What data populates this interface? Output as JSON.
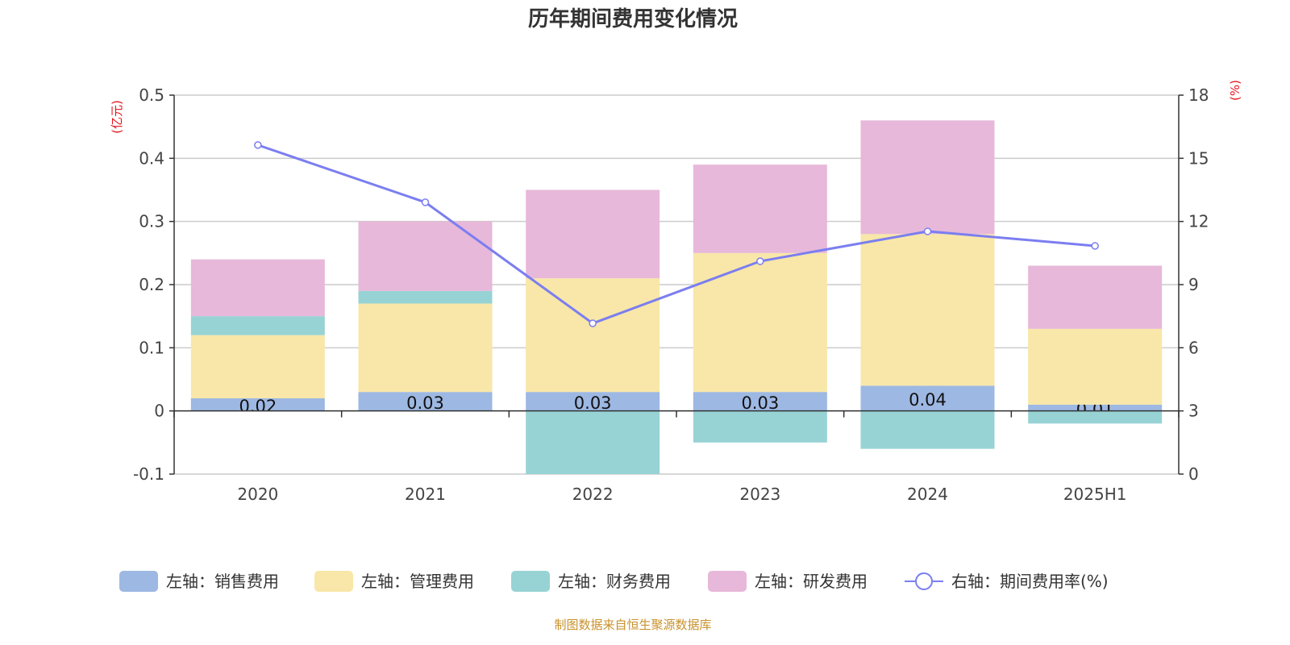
{
  "chart_data": {
    "type": "bar",
    "title": "历年期间费用变化情况",
    "categories": [
      "2020",
      "2021",
      "2022",
      "2023",
      "2024",
      "2025H1"
    ],
    "left_axis": {
      "unit": "(亿元)",
      "range": [
        -0.1,
        0.5
      ],
      "ticks": [
        "-0.1",
        "0",
        "0.1",
        "0.2",
        "0.3",
        "0.4",
        "0.5"
      ]
    },
    "right_axis": {
      "unit": "(%)",
      "range": [
        0,
        18
      ],
      "ticks": [
        "0",
        "3",
        "6",
        "9",
        "12",
        "15",
        "18"
      ]
    },
    "grid": true,
    "legend_position": "bottom",
    "series": [
      {
        "name": "左轴：销售费用",
        "kind": "bar",
        "color": "#9db8e2",
        "values": [
          0.02,
          0.03,
          0.03,
          0.03,
          0.04,
          0.01
        ],
        "labels": [
          "0.02",
          "0.03",
          "0.03",
          "0.03",
          "0.04",
          "0.01"
        ]
      },
      {
        "name": "左轴：管理费用",
        "kind": "bar",
        "color": "#f8e7a8",
        "values": [
          0.1,
          0.14,
          0.18,
          0.22,
          0.24,
          0.12
        ]
      },
      {
        "name": "左轴：财务费用",
        "kind": "bar",
        "color": "#97d3d4",
        "values": [
          0.03,
          0.02,
          -0.1,
          -0.05,
          -0.06,
          -0.02
        ]
      },
      {
        "name": "左轴：研发费用",
        "kind": "bar",
        "color": "#e7b8d9",
        "values": [
          0.09,
          0.11,
          0.14,
          0.14,
          0.18,
          0.1
        ]
      },
      {
        "name": "右轴：期间费用率(%)",
        "kind": "line",
        "color": "#7b7ef0",
        "values": [
          15.63,
          12.91,
          7.16,
          10.11,
          11.53,
          10.84
        ]
      }
    ],
    "source": "制图数据来自恒生聚源数据库"
  }
}
